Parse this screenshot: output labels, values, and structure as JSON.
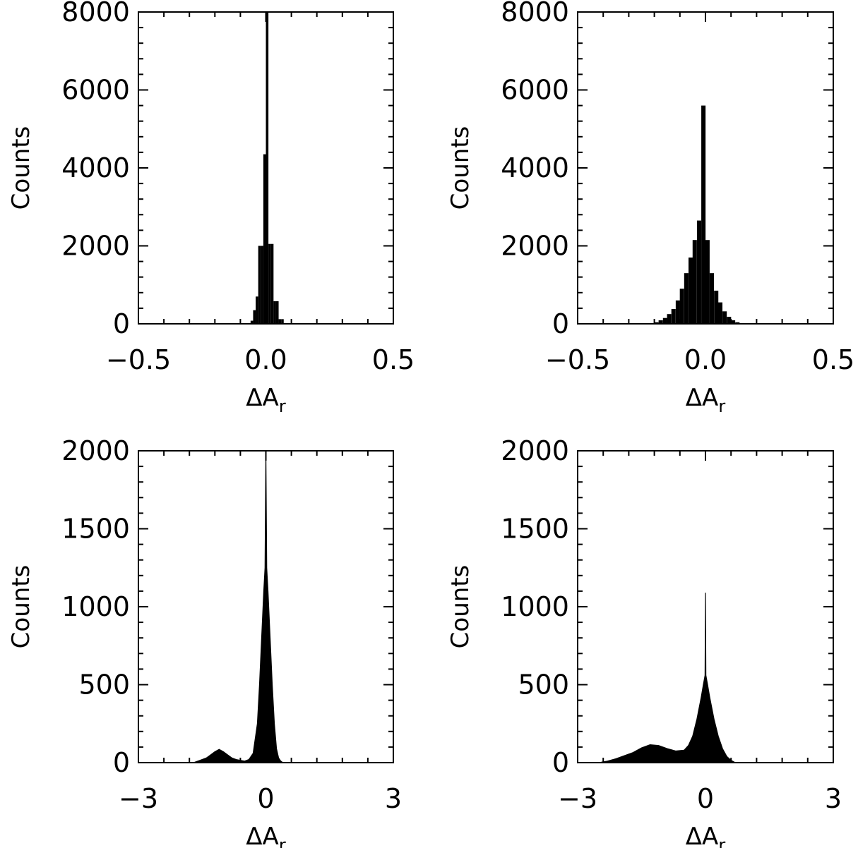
{
  "chart_data": [
    {
      "type": "bar",
      "xlabel": "ΔA",
      "xlabel_sub": "r",
      "ylabel": "Counts",
      "xlim": [
        -0.5,
        0.5
      ],
      "ylim": [
        0,
        8000
      ],
      "xticks": [
        -0.5,
        0.0,
        0.5
      ],
      "xtick_labels": [
        "−0.5",
        "0.0",
        "0.5"
      ],
      "yticks": [
        0,
        2000,
        4000,
        6000,
        8000
      ],
      "ytick_labels": [
        "0",
        "2000",
        "4000",
        "6000",
        "8000"
      ],
      "bin_width": 0.01,
      "bin_centers": [
        -0.065,
        -0.055,
        -0.045,
        -0.035,
        -0.025,
        -0.015,
        -0.005,
        0.005,
        0.015,
        0.025,
        0.035,
        0.045,
        0.055,
        0.065,
        0.075
      ],
      "values": [
        20,
        80,
        350,
        700,
        2000,
        2000,
        4350,
        8000,
        2050,
        2050,
        580,
        580,
        120,
        120,
        20
      ]
    },
    {
      "type": "bar",
      "xlabel": "ΔA",
      "xlabel_sub": "r",
      "ylabel": "Counts",
      "xlim": [
        -0.5,
        0.5
      ],
      "ylim": [
        0,
        8000
      ],
      "xticks": [
        -0.5,
        0.0,
        0.5
      ],
      "xtick_labels": [
        "−0.5",
        "0.0",
        "0.5"
      ],
      "yticks": [
        0,
        2000,
        4000,
        6000,
        8000
      ],
      "ytick_labels": [
        "0",
        "2000",
        "4000",
        "6000",
        "8000"
      ],
      "bin_width": 0.0167,
      "bin_centers": [
        -0.225,
        -0.208,
        -0.192,
        -0.175,
        -0.158,
        -0.142,
        -0.125,
        -0.108,
        -0.092,
        -0.075,
        -0.058,
        -0.042,
        -0.025,
        -0.008,
        0.008,
        0.025,
        0.042,
        0.058,
        0.075,
        0.092,
        0.108,
        0.125,
        0.142,
        0.158
      ],
      "values": [
        10,
        20,
        40,
        90,
        150,
        250,
        380,
        600,
        900,
        1300,
        1700,
        2150,
        2650,
        5600,
        2150,
        1300,
        850,
        550,
        320,
        180,
        90,
        40,
        20,
        10
      ]
    },
    {
      "type": "area",
      "xlabel": "ΔA",
      "xlabel_sub": "r",
      "ylabel": "Counts",
      "xlim": [
        -3,
        3
      ],
      "ylim": [
        0,
        2000
      ],
      "xticks": [
        -3,
        0,
        3
      ],
      "xtick_labels": [
        "−3",
        "0",
        "3"
      ],
      "yticks": [
        0,
        500,
        1000,
        1500,
        2000
      ],
      "ytick_labels": [
        "0",
        "500",
        "1000",
        "1500",
        "2000"
      ],
      "x": [
        -1.7,
        -1.55,
        -1.4,
        -1.3,
        -1.2,
        -1.1,
        -1.0,
        -0.9,
        -0.8,
        -0.7,
        -0.6,
        -0.5,
        -0.4,
        -0.3,
        -0.2,
        -0.15,
        -0.1,
        -0.05,
        -0.02,
        0.0,
        0.02,
        0.05,
        0.1,
        0.15,
        0.2,
        0.25,
        0.3,
        0.35,
        0.4
      ],
      "values": [
        0,
        15,
        30,
        50,
        70,
        85,
        70,
        50,
        30,
        20,
        15,
        10,
        20,
        60,
        250,
        500,
        800,
        1100,
        1250,
        2000,
        1250,
        1100,
        800,
        500,
        250,
        90,
        30,
        10,
        0
      ]
    },
    {
      "type": "area",
      "xlabel": "ΔA",
      "xlabel_sub": "r",
      "ylabel": "Counts",
      "xlim": [
        -3,
        3
      ],
      "ylim": [
        0,
        2000
      ],
      "xticks": [
        -3,
        0,
        3
      ],
      "xtick_labels": [
        "−3",
        "0",
        "3"
      ],
      "yticks": [
        0,
        500,
        1000,
        1500,
        2000
      ],
      "ytick_labels": [
        "0",
        "500",
        "1000",
        "1500",
        "2000"
      ],
      "x": [
        -2.5,
        -2.3,
        -2.1,
        -1.9,
        -1.7,
        -1.5,
        -1.3,
        -1.1,
        -0.9,
        -0.7,
        -0.5,
        -0.4,
        -0.3,
        -0.2,
        -0.1,
        -0.05,
        -0.01,
        0.0,
        0.01,
        0.05,
        0.1,
        0.2,
        0.3,
        0.4,
        0.5,
        0.6,
        0.7
      ],
      "values": [
        0,
        10,
        25,
        45,
        65,
        95,
        115,
        110,
        90,
        75,
        80,
        110,
        170,
        280,
        420,
        500,
        560,
        1090,
        560,
        500,
        420,
        280,
        170,
        90,
        40,
        15,
        0
      ]
    }
  ]
}
